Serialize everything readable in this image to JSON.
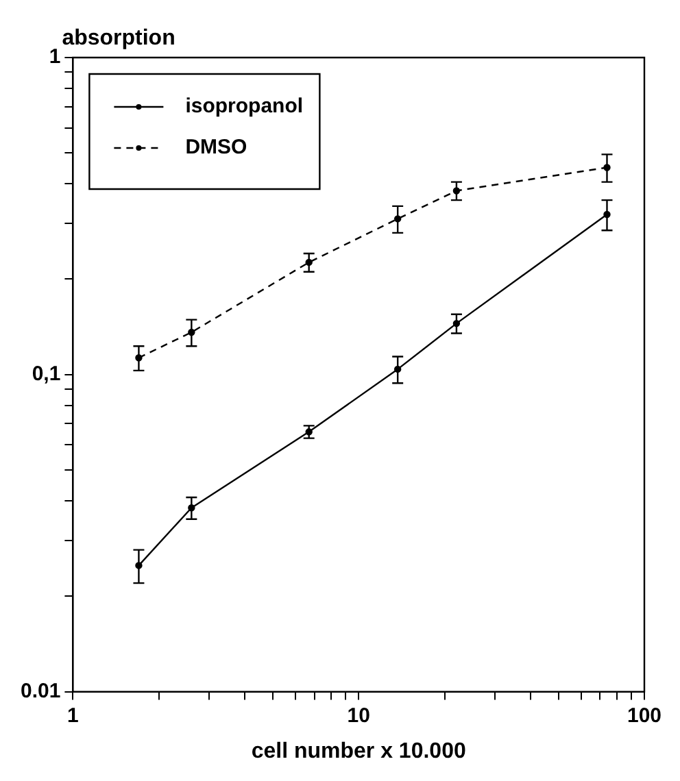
{
  "chart_data": {
    "type": "line",
    "xlabel": "cell number x 10.000",
    "ylabel": "absorption",
    "x": [
      1.7,
      2.6,
      6.7,
      13.7,
      22,
      74
    ],
    "series": [
      {
        "name": "isopropanol",
        "color": "#000000",
        "line_style": "solid",
        "values": [
          0.025,
          0.038,
          0.066,
          0.104,
          0.145,
          0.32
        ],
        "errors": [
          0.003,
          0.003,
          0.003,
          0.01,
          0.01,
          0.035
        ]
      },
      {
        "name": "DMSO",
        "color": "#000000",
        "line_style": "dashed",
        "values": [
          0.113,
          0.136,
          0.226,
          0.31,
          0.38,
          0.45
        ],
        "errors": [
          0.01,
          0.013,
          0.015,
          0.03,
          0.025,
          0.045
        ]
      }
    ],
    "log": "xy",
    "marker": "circle",
    "grid": false,
    "legend": "top left",
    "xlim": [
      1,
      100
    ],
    "ylim": [
      0.01,
      1
    ],
    "xticks": [
      1,
      {
        "value": 2,
        "label": null
      },
      {
        "value": 3,
        "label": null
      },
      {
        "value": 4,
        "label": null
      },
      {
        "value": 5,
        "label": null
      },
      {
        "value": 6,
        "label": null
      },
      {
        "value": 7,
        "label": null
      },
      {
        "value": 8,
        "label": null
      },
      {
        "value": 9,
        "label": null
      },
      10,
      {
        "value": 20,
        "label": null
      },
      {
        "value": 30,
        "label": null
      },
      {
        "value": 40,
        "label": null
      },
      {
        "value": 50,
        "label": null
      },
      {
        "value": 60,
        "label": null
      },
      {
        "value": 70,
        "label": null
      },
      {
        "value": 80,
        "label": null
      },
      {
        "value": 90,
        "label": null
      },
      100
    ],
    "yticks": [
      0.01,
      {
        "value": 0.02,
        "label": null
      },
      {
        "value": 0.03,
        "label": null
      },
      {
        "value": 0.04,
        "label": null
      },
      {
        "value": 0.05,
        "label": null
      },
      {
        "value": 0.06,
        "label": null
      },
      {
        "value": 0.07,
        "label": null
      },
      {
        "value": 0.08,
        "label": null
      },
      {
        "value": 0.09,
        "label": null
      },
      {
        "value": 0.1,
        "label": "0,1"
      },
      {
        "value": 0.2,
        "label": null
      },
      {
        "value": 0.3,
        "label": null
      },
      {
        "value": 0.4,
        "label": null
      },
      {
        "value": 0.5,
        "label": null
      },
      {
        "value": 0.6,
        "label": null
      },
      {
        "value": 0.7,
        "label": null
      },
      {
        "value": 0.8,
        "label": null
      },
      {
        "value": 0.9,
        "label": null
      },
      1
    ]
  }
}
